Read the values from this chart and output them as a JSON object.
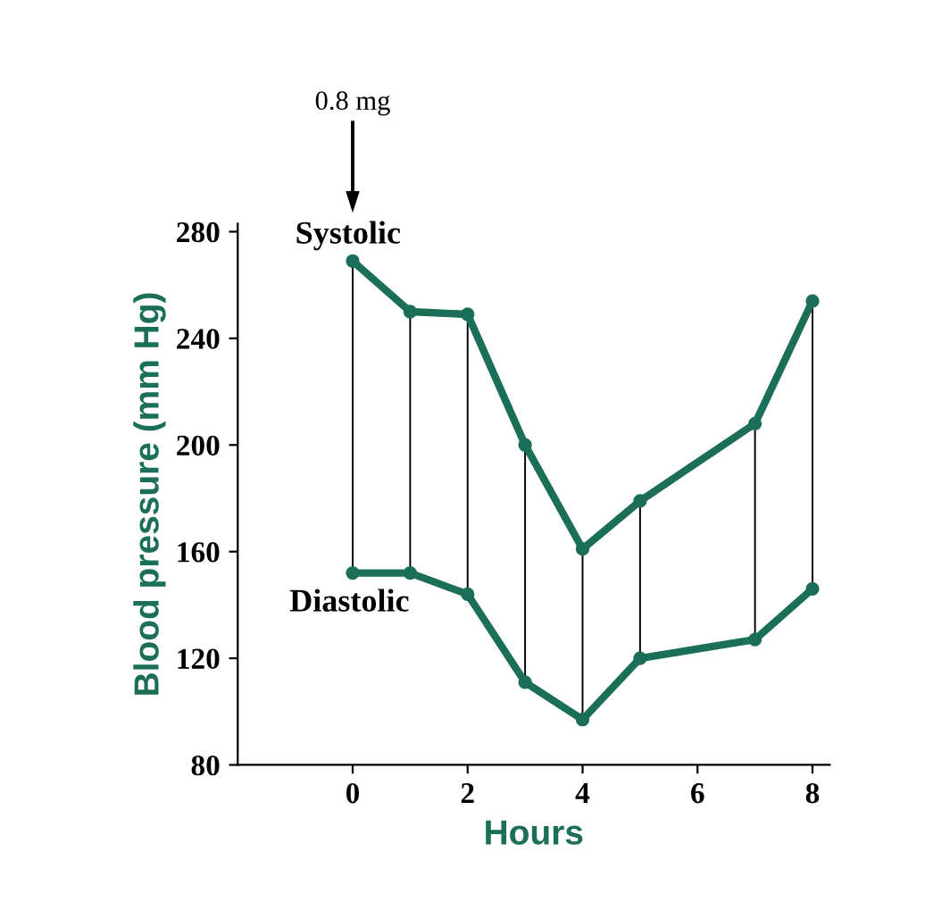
{
  "chart_data": {
    "type": "line",
    "xlabel": "Hours",
    "ylabel": "Blood pressure (mm Hg)",
    "x": [
      0,
      1,
      2,
      3,
      4,
      5,
      7,
      8
    ],
    "series": [
      {
        "name": "Systolic",
        "color": "#1b6e57",
        "values": [
          269,
          250,
          249,
          200,
          161,
          179,
          208,
          254
        ]
      },
      {
        "name": "Diastolic",
        "color": "#1b6e57",
        "values": [
          152,
          152,
          144,
          111,
          97,
          120,
          127,
          146
        ]
      }
    ],
    "xlim": [
      -2,
      8.3
    ],
    "ylim": [
      80,
      283
    ],
    "xticks": [
      0,
      2,
      4,
      6,
      8
    ],
    "yticks": [
      80,
      120,
      160,
      200,
      240,
      280
    ],
    "annotations": [
      "0.8 mg"
    ],
    "marker": "circle",
    "line_style": "solid",
    "grid": false,
    "legend": false
  }
}
